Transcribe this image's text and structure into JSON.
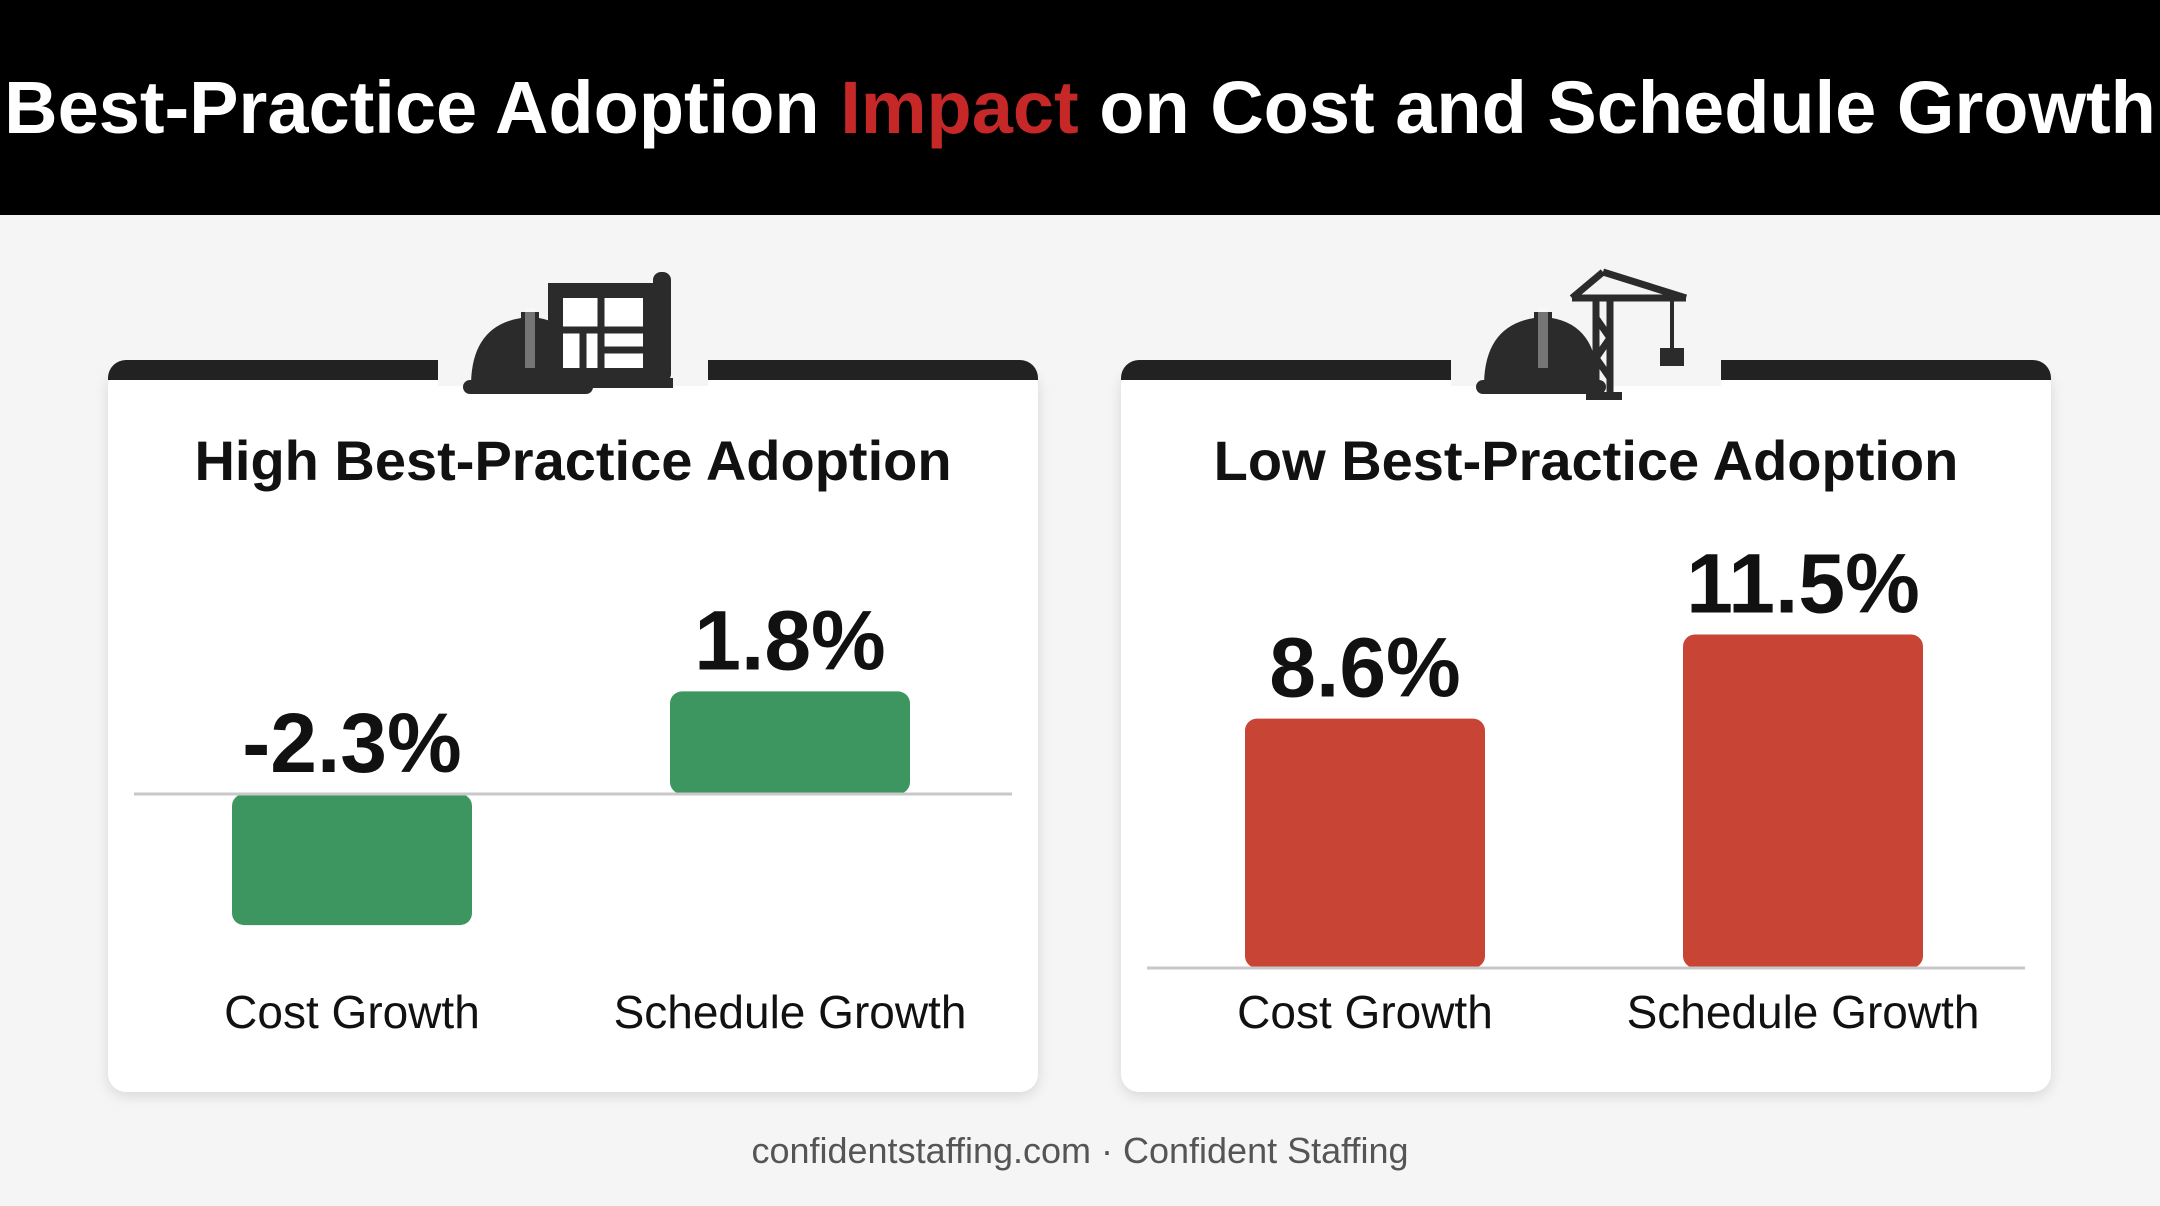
{
  "header": {
    "title_before": "Best-Practice Adoption ",
    "title_accent": "Impact",
    "title_after": " on Cost and Schedule Growth",
    "accent_color": "#c62828"
  },
  "footer": {
    "text": "confidentstaffing.com · Confident Staffing"
  },
  "panels": [
    {
      "icons": [
        "hard-hat-icon",
        "blueprint-icon"
      ]
    },
    {
      "icons": [
        "hard-hat-icon",
        "crane-icon"
      ]
    }
  ],
  "chart_data": [
    {
      "type": "bar",
      "title": "High Best-Practice Adoption",
      "categories": [
        "Cost Growth",
        "Schedule Growth"
      ],
      "values": [
        -2.3,
        1.8
      ],
      "value_labels": [
        "-2.3%",
        "1.8%"
      ],
      "unit": "%",
      "bar_color": "#3d9660",
      "ylim": [
        -3.5,
        3.5
      ]
    },
    {
      "type": "bar",
      "title": "Low Best-Practice Adoption",
      "categories": [
        "Cost Growth",
        "Schedule Growth"
      ],
      "values": [
        8.6,
        11.5
      ],
      "value_labels": [
        "8.6%",
        "11.5%"
      ],
      "unit": "%",
      "bar_color": "#c84536",
      "ylim": [
        0,
        14
      ]
    }
  ]
}
